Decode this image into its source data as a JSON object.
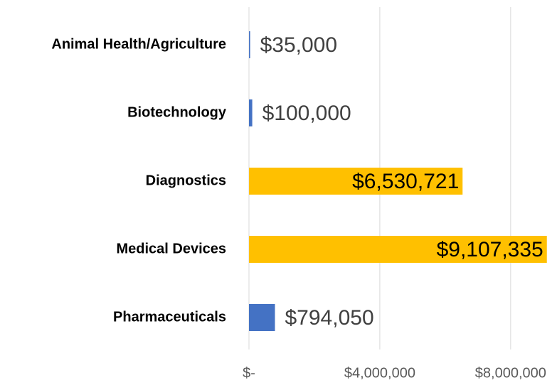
{
  "chart_data": {
    "type": "barh",
    "categories": [
      "Animal Health/Agriculture",
      "Biotechnology",
      "Diagnostics",
      "Medical Devices",
      "Pharmaceuticals"
    ],
    "values": [
      35000,
      100000,
      6530721,
      9107335,
      794050
    ],
    "value_labels": [
      "$35,000",
      "$100,000",
      "$6,530,721",
      "$9,107,335",
      "$794,050"
    ],
    "colors": [
      "#4472c4",
      "#4472c4",
      "#ffc000",
      "#ffc000",
      "#4472c4"
    ],
    "xlim": [
      0,
      9200000
    ],
    "xticks": [
      {
        "value": 0,
        "label": "$-"
      },
      {
        "value": 4000000,
        "label": "$4,000,000"
      },
      {
        "value": 8000000,
        "label": "$8,000,000"
      }
    ],
    "grid": true
  }
}
